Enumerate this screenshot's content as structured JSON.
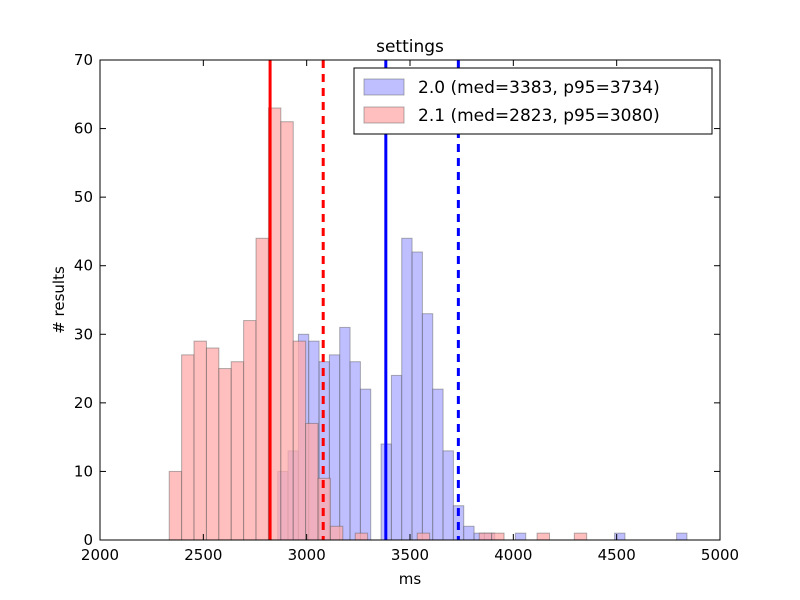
{
  "chart_data": {
    "type": "histogram",
    "title": "settings",
    "xlabel": "ms",
    "ylabel": "# results",
    "xlim": [
      2000,
      5000
    ],
    "ylim": [
      0,
      70
    ],
    "xticks": [
      "2000",
      "2500",
      "3000",
      "3500",
      "4000",
      "4500",
      "5000"
    ],
    "yticks": [
      "0",
      "10",
      "20",
      "30",
      "40",
      "50",
      "60",
      "70"
    ],
    "legend_position": "top-right",
    "series": [
      {
        "name": "2.0 (med=3383, p95=3734)",
        "color": "#0000ff",
        "fill": "#aaaaff",
        "median": 3383,
        "p95": 3734,
        "bins": [
          {
            "x0": 2860,
            "x1": 2910,
            "count": 10
          },
          {
            "x0": 2910,
            "x1": 2960,
            "count": 13
          },
          {
            "x0": 2960,
            "x1": 3010,
            "count": 30
          },
          {
            "x0": 3010,
            "x1": 3060,
            "count": 29
          },
          {
            "x0": 3060,
            "x1": 3110,
            "count": 26
          },
          {
            "x0": 3110,
            "x1": 3160,
            "count": 27
          },
          {
            "x0": 3160,
            "x1": 3210,
            "count": 31
          },
          {
            "x0": 3210,
            "x1": 3260,
            "count": 26
          },
          {
            "x0": 3260,
            "x1": 3310,
            "count": 22
          },
          {
            "x0": 3310,
            "x1": 3360,
            "count": 0
          },
          {
            "x0": 3360,
            "x1": 3410,
            "count": 14
          },
          {
            "x0": 3410,
            "x1": 3460,
            "count": 24
          },
          {
            "x0": 3460,
            "x1": 3510,
            "count": 44
          },
          {
            "x0": 3510,
            "x1": 3560,
            "count": 42
          },
          {
            "x0": 3560,
            "x1": 3610,
            "count": 33
          },
          {
            "x0": 3610,
            "x1": 3660,
            "count": 22
          },
          {
            "x0": 3660,
            "x1": 3710,
            "count": 13
          },
          {
            "x0": 3710,
            "x1": 3760,
            "count": 5
          },
          {
            "x0": 3760,
            "x1": 3810,
            "count": 2
          },
          {
            "x0": 3810,
            "x1": 3860,
            "count": 1
          },
          {
            "x0": 3860,
            "x1": 3910,
            "count": 1
          },
          {
            "x0": 4010,
            "x1": 4060,
            "count": 1
          },
          {
            "x0": 4490,
            "x1": 4540,
            "count": 1
          },
          {
            "x0": 4790,
            "x1": 4840,
            "count": 1
          }
        ]
      },
      {
        "name": "2.1 (med=2823, p95=3080)",
        "color": "#ff0000",
        "fill": "#ffaaaa",
        "median": 2823,
        "p95": 3080,
        "bins": [
          {
            "x0": 2335,
            "x1": 2395,
            "count": 10
          },
          {
            "x0": 2395,
            "x1": 2455,
            "count": 27
          },
          {
            "x0": 2455,
            "x1": 2515,
            "count": 29
          },
          {
            "x0": 2515,
            "x1": 2575,
            "count": 28
          },
          {
            "x0": 2575,
            "x1": 2635,
            "count": 25
          },
          {
            "x0": 2635,
            "x1": 2695,
            "count": 26
          },
          {
            "x0": 2695,
            "x1": 2755,
            "count": 32
          },
          {
            "x0": 2755,
            "x1": 2815,
            "count": 44
          },
          {
            "x0": 2815,
            "x1": 2875,
            "count": 63
          },
          {
            "x0": 2875,
            "x1": 2935,
            "count": 61
          },
          {
            "x0": 2935,
            "x1": 2995,
            "count": 29
          },
          {
            "x0": 2995,
            "x1": 3055,
            "count": 17
          },
          {
            "x0": 3055,
            "x1": 3115,
            "count": 9
          },
          {
            "x0": 3115,
            "x1": 3175,
            "count": 2
          },
          {
            "x0": 3235,
            "x1": 3295,
            "count": 1
          },
          {
            "x0": 3535,
            "x1": 3595,
            "count": 1
          },
          {
            "x0": 3835,
            "x1": 3895,
            "count": 1
          },
          {
            "x0": 3895,
            "x1": 3955,
            "count": 1
          },
          {
            "x0": 4115,
            "x1": 4175,
            "count": 1
          },
          {
            "x0": 4295,
            "x1": 4355,
            "count": 1
          }
        ]
      }
    ]
  }
}
